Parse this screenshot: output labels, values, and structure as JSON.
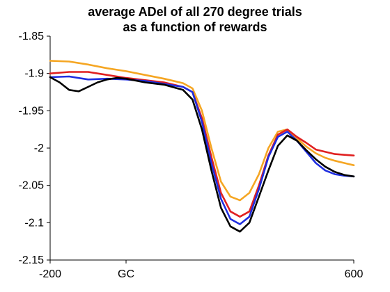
{
  "chart_data": {
    "type": "line",
    "title_line1": "average ADel of all 270 degree trials",
    "title_line2": "as a function of rewards",
    "xlabel": "",
    "ylabel": "",
    "xlim": [
      -200,
      600
    ],
    "ylim": [
      -2.15,
      -1.85
    ],
    "y_ticks": [
      -1.85,
      -1.9,
      -1.95,
      -2,
      -2.05,
      -2.1,
      -2.15
    ],
    "y_tick_labels": [
      "-1.85",
      "-1.9",
      "-1.95",
      "-2",
      "-2.05",
      "-2.1",
      "-2.15"
    ],
    "x_ticks": [
      -200,
      0,
      600
    ],
    "x_tick_labels": [
      "-200",
      "GC",
      "600"
    ],
    "grid": false,
    "legend": "none",
    "series": [
      {
        "color": "#f5a623",
        "x": [
          -200,
          -150,
          -100,
          -50,
          0,
          50,
          100,
          150,
          175,
          200,
          225,
          250,
          275,
          300,
          325,
          350,
          375,
          400,
          425,
          450,
          475,
          500,
          525,
          550,
          575,
          600
        ],
        "y": [
          -1.883,
          -1.884,
          -1.888,
          -1.893,
          -1.897,
          -1.902,
          -1.907,
          -1.913,
          -1.92,
          -1.95,
          -2.0,
          -2.045,
          -2.065,
          -2.07,
          -2.06,
          -2.035,
          -2.0,
          -1.978,
          -1.975,
          -1.987,
          -1.998,
          -2.007,
          -2.013,
          -2.017,
          -2.02,
          -2.023
        ]
      },
      {
        "color": "#e02020",
        "x": [
          -200,
          -150,
          -100,
          -50,
          0,
          50,
          100,
          150,
          175,
          200,
          225,
          250,
          275,
          300,
          325,
          350,
          375,
          400,
          425,
          450,
          475,
          500,
          525,
          550,
          575,
          600
        ],
        "y": [
          -1.9,
          -1.898,
          -1.898,
          -1.902,
          -1.906,
          -1.909,
          -1.912,
          -1.918,
          -1.925,
          -1.96,
          -2.012,
          -2.06,
          -2.085,
          -2.092,
          -2.085,
          -2.05,
          -2.01,
          -1.982,
          -1.975,
          -1.985,
          -1.993,
          -2.002,
          -2.005,
          -2.008,
          -2.009,
          -2.01
        ]
      },
      {
        "color": "#1f2ee0",
        "x": [
          -200,
          -150,
          -100,
          -50,
          0,
          50,
          100,
          150,
          175,
          200,
          225,
          250,
          275,
          300,
          325,
          350,
          375,
          400,
          425,
          450,
          475,
          500,
          525,
          550,
          575,
          600
        ],
        "y": [
          -1.905,
          -1.904,
          -1.908,
          -1.907,
          -1.908,
          -1.91,
          -1.914,
          -1.918,
          -1.925,
          -1.965,
          -2.02,
          -2.068,
          -2.095,
          -2.102,
          -2.092,
          -2.055,
          -2.012,
          -1.985,
          -1.978,
          -1.99,
          -2.005,
          -2.02,
          -2.03,
          -2.035,
          -2.037,
          -2.038
        ]
      },
      {
        "color": "#000000",
        "x": [
          -200,
          -175,
          -150,
          -125,
          -100,
          -75,
          -50,
          -25,
          0,
          50,
          100,
          150,
          175,
          200,
          225,
          250,
          275,
          300,
          325,
          350,
          375,
          400,
          425,
          450,
          475,
          500,
          525,
          550,
          575,
          600
        ],
        "y": [
          -1.905,
          -1.912,
          -1.922,
          -1.924,
          -1.918,
          -1.912,
          -1.908,
          -1.906,
          -1.907,
          -1.912,
          -1.915,
          -1.922,
          -1.935,
          -1.975,
          -2.03,
          -2.08,
          -2.105,
          -2.112,
          -2.1,
          -2.065,
          -2.03,
          -1.997,
          -1.983,
          -1.99,
          -2.003,
          -2.015,
          -2.025,
          -2.032,
          -2.036,
          -2.038
        ]
      }
    ]
  }
}
